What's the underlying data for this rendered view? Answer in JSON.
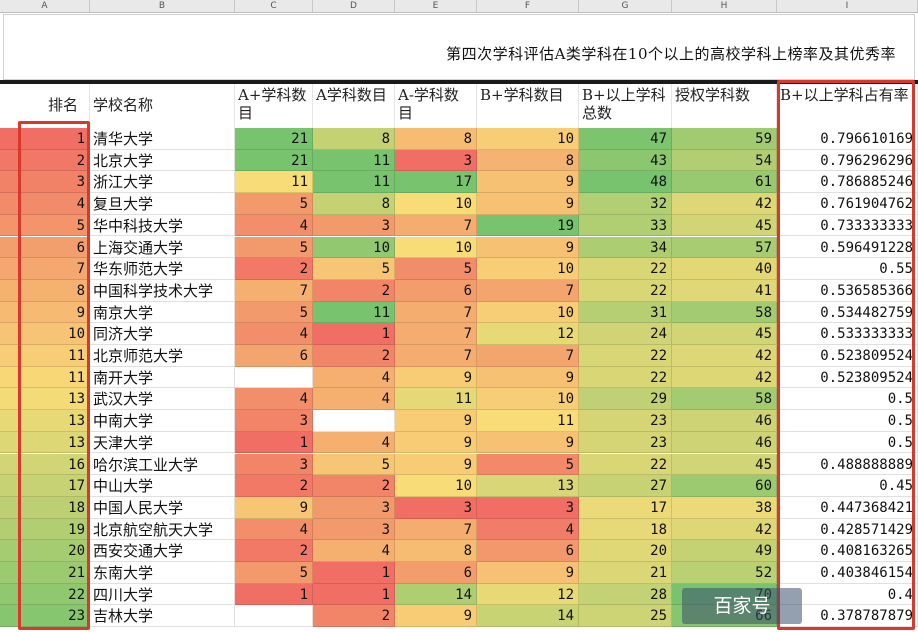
{
  "columns": [
    "A",
    "B",
    "C",
    "D",
    "E",
    "F",
    "G",
    "H",
    "I"
  ],
  "title": "第四次学科评估A类学科在10个以上的高校学科上榜率及其优秀率",
  "headers": [
    "排名",
    "学校名称",
    "A+学科数目",
    "A学科数目",
    "A-学科数目",
    "B+学科数目",
    "B+以上学科总数",
    "授权学科数",
    "B+以上学科占有率"
  ],
  "rows": [
    [
      "1",
      "清华大学",
      "21",
      "8",
      "8",
      "10",
      "47",
      "59",
      "0.796610169"
    ],
    [
      "2",
      "北京大学",
      "21",
      "11",
      "3",
      "8",
      "43",
      "54",
      "0.796296296"
    ],
    [
      "3",
      "浙江大学",
      "11",
      "11",
      "17",
      "9",
      "48",
      "61",
      "0.786885246"
    ],
    [
      "4",
      "复旦大学",
      "5",
      "8",
      "10",
      "9",
      "32",
      "42",
      "0.761904762"
    ],
    [
      "5",
      "华中科技大学",
      "4",
      "3",
      "7",
      "19",
      "33",
      "45",
      "0.733333333"
    ],
    [
      "6",
      "上海交通大学",
      "5",
      "10",
      "10",
      "9",
      "34",
      "57",
      "0.596491228"
    ],
    [
      "7",
      "华东师范大学",
      "2",
      "5",
      "5",
      "10",
      "22",
      "40",
      "0.55"
    ],
    [
      "8",
      "中国科学技术大学",
      "7",
      "2",
      "6",
      "7",
      "22",
      "41",
      "0.536585366"
    ],
    [
      "9",
      "南京大学",
      "5",
      "11",
      "7",
      "10",
      "31",
      "58",
      "0.534482759"
    ],
    [
      "10",
      "同济大学",
      "4",
      "1",
      "7",
      "12",
      "24",
      "45",
      "0.533333333"
    ],
    [
      "11",
      "北京师范大学",
      "6",
      "2",
      "7",
      "7",
      "22",
      "42",
      "0.523809524"
    ],
    [
      "11",
      "南开大学",
      "",
      "4",
      "9",
      "9",
      "22",
      "42",
      "0.523809524"
    ],
    [
      "13",
      "武汉大学",
      "4",
      "4",
      "11",
      "10",
      "29",
      "58",
      "0.5"
    ],
    [
      "13",
      "中南大学",
      "3",
      "",
      "9",
      "11",
      "23",
      "46",
      "0.5"
    ],
    [
      "13",
      "天津大学",
      "1",
      "4",
      "9",
      "9",
      "23",
      "46",
      "0.5"
    ],
    [
      "16",
      "哈尔滨工业大学",
      "3",
      "5",
      "9",
      "5",
      "22",
      "45",
      "0.488888889"
    ],
    [
      "17",
      "中山大学",
      "2",
      "2",
      "10",
      "13",
      "27",
      "60",
      "0.45"
    ],
    [
      "18",
      "中国人民大学",
      "9",
      "3",
      "3",
      "3",
      "17",
      "38",
      "0.447368421"
    ],
    [
      "19",
      "北京航空航天大学",
      "4",
      "3",
      "7",
      "4",
      "18",
      "42",
      "0.428571429"
    ],
    [
      "20",
      "西安交通大学",
      "2",
      "4",
      "8",
      "6",
      "20",
      "49",
      "0.408163265"
    ],
    [
      "21",
      "东南大学",
      "5",
      "1",
      "6",
      "9",
      "21",
      "52",
      "0.403846154"
    ],
    [
      "22",
      "四川大学",
      "1",
      "1",
      "14",
      "12",
      "28",
      "70",
      "0.4"
    ],
    [
      "23",
      "吉林大学",
      "",
      "2",
      "9",
      "14",
      "25",
      "66",
      "0.378787879"
    ]
  ],
  "watermark": "百家号",
  "colors": {
    "accent_red": "#d9382c"
  }
}
